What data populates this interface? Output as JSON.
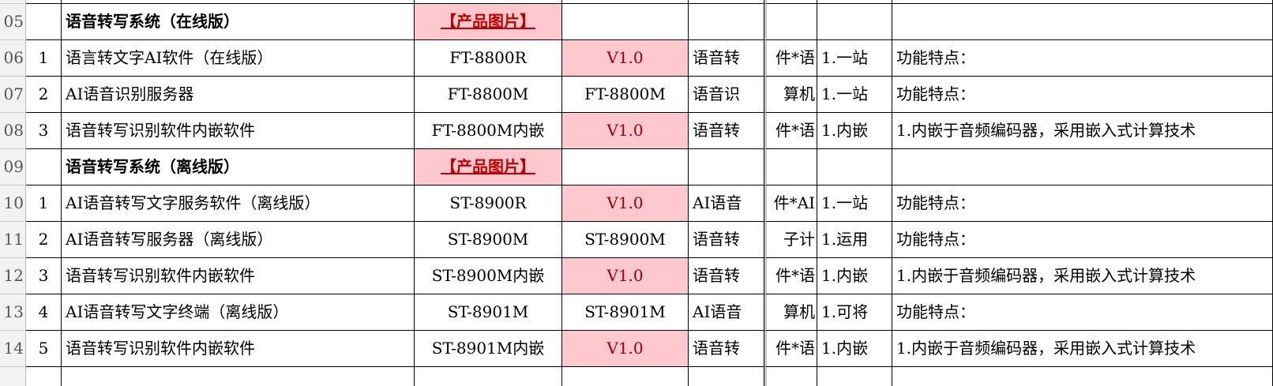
{
  "rows": [
    {
      "row": "05",
      "cells": [
        null,
        "语音转写系统（在线版）",
        "【产品图片】",
        null,
        null,
        null,
        null,
        null
      ]
    },
    {
      "row": "06",
      "cells": [
        "1",
        "语言转文字AI软件（在线版）",
        "FT-8800R",
        "V1.0",
        "语音转",
        "件*语",
        "1.一站",
        "功能特点："
      ]
    },
    {
      "row": "07",
      "cells": [
        "2",
        "AI语音识别服务器",
        "FT-8800M",
        "FT-8800M",
        "语音识",
        "算机",
        "1.一站",
        "功能特点："
      ]
    },
    {
      "row": "08",
      "cells": [
        "3",
        "语音转写识别软件内嵌软件",
        "FT-8800M内嵌",
        "V1.0",
        "语音转",
        "件*语",
        "1.内嵌",
        "1.内嵌于音频编码器，采用嵌入式计算技术"
      ]
    },
    {
      "row": "09",
      "cells": [
        null,
        "语音转写系统（离线版）",
        "【产品图片】",
        null,
        null,
        null,
        null,
        null
      ]
    },
    {
      "row": "10",
      "cells": [
        "1",
        "AI语音转写文字服务软件（离线版）",
        "ST-8900R",
        "V1.0",
        "AI语音",
        "件*AI",
        "1.一站",
        "功能特点："
      ]
    },
    {
      "row": "11",
      "cells": [
        "2",
        "AI语音转写服务器（离线版）",
        "ST-8900M",
        "ST-8900M",
        "语音转",
        "子计",
        "1.运用",
        "功能特点："
      ]
    },
    {
      "row": "12",
      "cells": [
        "3",
        "语音转写识别软件内嵌软件",
        "ST-8900M内嵌",
        "V1.0",
        "语音转",
        "件*语",
        "1.内嵌",
        "1.内嵌于音频编码器，采用嵌入式计算技术"
      ]
    },
    {
      "row": "13",
      "cells": [
        "4",
        "AI语音转写文字终端（离线版）",
        "ST-8901M",
        "ST-8901M",
        "AI语音",
        "算机",
        "1.可将",
        "功能特点："
      ]
    },
    {
      "row": "14",
      "cells": [
        "5",
        "语音转写识别软件内嵌软件",
        "ST-8901M内嵌",
        "V1.0",
        "语音转",
        "件*语",
        "1.内嵌",
        "1.内嵌于音频编码器，采用嵌入式计算技术"
      ]
    }
  ]
}
